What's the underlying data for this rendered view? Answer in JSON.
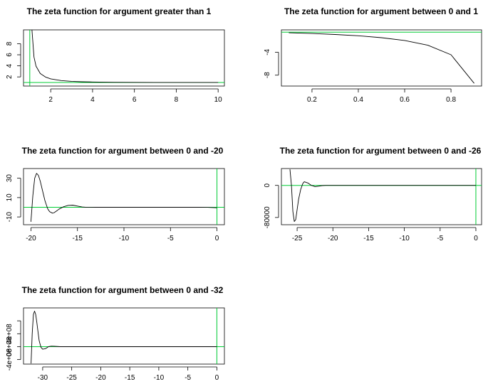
{
  "colors": {
    "curve": "#000000",
    "reference_line": "#00cc33",
    "frame": "#000000",
    "background": "#ffffff"
  },
  "chart_data": [
    {
      "type": "line",
      "title": "The zeta function for argument greater than 1",
      "xlabel": "",
      "ylabel": "",
      "xlim": [
        0.7,
        10.3
      ],
      "ylim": [
        0.35,
        10.5
      ],
      "xticks": [
        2,
        4,
        6,
        8,
        10
      ],
      "yticks": [
        2,
        4,
        6,
        8
      ],
      "xtick_labels": [
        "2",
        "4",
        "6",
        "8",
        "10"
      ],
      "ytick_labels": [
        "2",
        "4",
        "6",
        "8"
      ],
      "hline": 1,
      "vline": 1,
      "series": [
        {
          "x": [
            1.1,
            1.2,
            1.3,
            1.5,
            1.75,
            2,
            2.5,
            3,
            3.5,
            4,
            5,
            6,
            7,
            8,
            9,
            10
          ],
          "y": [
            10.58,
            5.59,
            3.93,
            2.61,
            1.98,
            1.645,
            1.341,
            1.202,
            1.127,
            1.082,
            1.037,
            1.017,
            1.008,
            1.004,
            1.002,
            1.001
          ]
        }
      ]
    },
    {
      "type": "line",
      "title": "The zeta function for argument between 0 and 1",
      "xlabel": "",
      "ylabel": "",
      "xlim": [
        0.068,
        0.932
      ],
      "ylim": [
        -9.9,
        -0.1
      ],
      "xticks": [
        0.2,
        0.4,
        0.6,
        0.8
      ],
      "yticks": [
        -8,
        -4
      ],
      "xtick_labels": [
        "0.2",
        "0.4",
        "0.6",
        "0.8"
      ],
      "ytick_labels": [
        "-8",
        "-4"
      ],
      "hline": -0.5,
      "series": [
        {
          "x": [
            0.1,
            0.2,
            0.3,
            0.4,
            0.5,
            0.6,
            0.7,
            0.8,
            0.9
          ],
          "y": [
            -0.603,
            -0.734,
            -0.904,
            -1.135,
            -1.46,
            -1.95,
            -2.778,
            -4.438,
            -9.43
          ]
        }
      ]
    },
    {
      "type": "line",
      "title": "The zeta function for argument between 0 and -20",
      "xlabel": "",
      "ylabel": "",
      "xlim": [
        -20.8,
        0.8
      ],
      "ylim": [
        -18,
        40
      ],
      "xticks": [
        -20,
        -15,
        -10,
        -5,
        0
      ],
      "yticks": [
        -10,
        10,
        30
      ],
      "xtick_labels": [
        "-20",
        "-15",
        "-10",
        "-5",
        "0"
      ],
      "ytick_labels": [
        "-10",
        "10",
        "30"
      ],
      "hline": 0,
      "vline": 0,
      "series": [
        {
          "x": [
            -20,
            -19.8,
            -19.6,
            -19.4,
            -19.2,
            -19,
            -18.8,
            -18.5,
            -18.2,
            -18,
            -17.7,
            -17.5,
            -17.2,
            -17,
            -16.5,
            -16,
            -15.5,
            -15,
            -14.5,
            -14,
            -13,
            -12,
            -10,
            -8,
            -6,
            -4,
            -2,
            -1,
            0
          ],
          "y": [
            -15,
            12,
            30,
            35,
            33,
            27,
            19,
            7,
            -1.5,
            -4.5,
            -6,
            -5.5,
            -3.5,
            -2,
            0.5,
            2,
            2.2,
            1.2,
            0.3,
            -0.1,
            0,
            0,
            0,
            0,
            0,
            0,
            0,
            -0.08,
            -0.5
          ]
        }
      ]
    },
    {
      "type": "line",
      "title": "The zeta function for argument between 0 and -26",
      "xlabel": "",
      "ylabel": "",
      "xlim": [
        -27.2,
        0.8
      ],
      "ylim": [
        -98000,
        42000
      ],
      "xticks": [
        -25,
        -20,
        -15,
        -10,
        -5,
        0
      ],
      "yticks": [
        -80000,
        0
      ],
      "xtick_labels": [
        "-25",
        "-20",
        "-15",
        "-10",
        "-5",
        "0"
      ],
      "ytick_labels": [
        "-80000",
        "0"
      ],
      "hline": 0,
      "vline": 0,
      "series": [
        {
          "x": [
            -26,
            -25.8,
            -25.6,
            -25.4,
            -25.2,
            -25,
            -24.8,
            -24.5,
            -24.2,
            -24,
            -23.5,
            -23,
            -22.5,
            -22,
            -21.5,
            -21,
            -20,
            -18,
            -15,
            -10,
            -5,
            0
          ],
          "y": [
            40000,
            0,
            -65000,
            -90000,
            -85000,
            -60000,
            -35000,
            -10000,
            5000,
            9000,
            6000,
            0,
            -3000,
            -2000,
            -500,
            0,
            0,
            0,
            0,
            0,
            0,
            0
          ]
        }
      ]
    },
    {
      "type": "line",
      "title": "The zeta function for argument between 0 and -32",
      "xlabel": "",
      "ylabel": "",
      "xlim": [
        -33.3,
        1.3
      ],
      "ylim": [
        -540000000,
        1200000000
      ],
      "xticks": [
        -30,
        -25,
        -20,
        -15,
        -10,
        -5,
        0
      ],
      "yticks": [
        -400000000,
        0,
        400000000,
        800000000
      ],
      "xtick_labels": [
        "-30",
        "-25",
        "-20",
        "-15",
        "-10",
        "-5",
        "0"
      ],
      "ytick_labels": [
        "-4e+08",
        "0e+08",
        "4e+08",
        ""
      ],
      "hline": 0,
      "vline": 0,
      "series": [
        {
          "x": [
            -32,
            -31.8,
            -31.6,
            -31.4,
            -31.2,
            -31,
            -30.8,
            -30.6,
            -30.3,
            -30,
            -29.5,
            -29,
            -28.5,
            -28,
            -27,
            -25,
            -20,
            -10,
            0
          ],
          "y": [
            -520000000,
            400000000,
            1000000000,
            1100000000,
            1000000000,
            750000000,
            450000000,
            180000000,
            -20000000,
            -80000000,
            -60000000,
            0,
            15000000,
            10000000,
            0,
            0,
            0,
            0,
            0
          ]
        }
      ]
    }
  ]
}
